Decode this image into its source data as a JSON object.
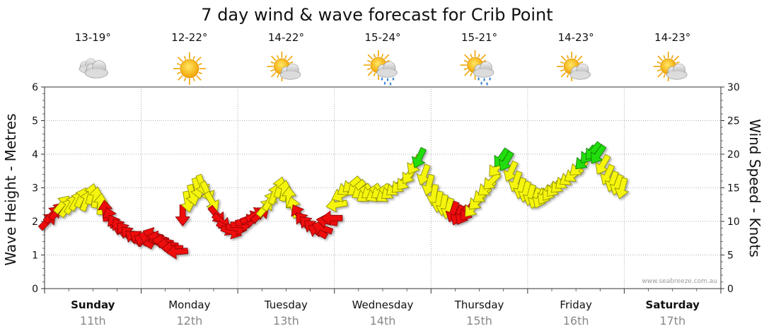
{
  "chart_data": {
    "type": "line",
    "title": "7 day wind & wave forecast for Crib Point",
    "ylabel": "Wave Height - Metres",
    "y2label": "Wind Speed - Knots",
    "ylim": [
      0,
      6
    ],
    "y2lim": [
      0,
      30
    ],
    "yticks": [
      "0",
      "1",
      "2",
      "3",
      "4",
      "5",
      "6"
    ],
    "y2ticks": [
      "0",
      "5",
      "10",
      "15",
      "20",
      "25",
      "30"
    ],
    "grid": true,
    "credit": "www.seabreeze.com.au",
    "days": [
      {
        "name": "Sunday",
        "date": "11th",
        "bold": true,
        "temp": "13-19°",
        "icon": "cloudy-icon"
      },
      {
        "name": "Monday",
        "date": "12th",
        "bold": false,
        "temp": "12-22°",
        "icon": "sunny-icon"
      },
      {
        "name": "Tuesday",
        "date": "13th",
        "bold": false,
        "temp": "14-22°",
        "icon": "partly-cloudy-icon"
      },
      {
        "name": "Wednesday",
        "date": "14th",
        "bold": false,
        "temp": "15-24°",
        "icon": "sun-shower-icon"
      },
      {
        "name": "Thursday",
        "date": "15th",
        "bold": false,
        "temp": "15-21°",
        "icon": "sun-shower-icon"
      },
      {
        "name": "Friday",
        "date": "16th",
        "bold": false,
        "temp": "14-23°",
        "icon": "partly-cloudy-icon"
      },
      {
        "name": "Saturday",
        "date": "17th",
        "bold": true,
        "temp": "14-23°",
        "icon": "partly-cloudy-icon"
      }
    ],
    "wind_x_unit": "day",
    "wind_series": [
      [
        0.0,
        10.0,
        225
      ],
      [
        0.05,
        11.0,
        225
      ],
      [
        0.1,
        11.5,
        220
      ],
      [
        0.15,
        12.5,
        220
      ],
      [
        0.2,
        12.0,
        215
      ],
      [
        0.25,
        12.5,
        210
      ],
      [
        0.3,
        13.0,
        210
      ],
      [
        0.35,
        13.5,
        205
      ],
      [
        0.4,
        13.0,
        200
      ],
      [
        0.45,
        14.0,
        195
      ],
      [
        0.5,
        13.5,
        190
      ],
      [
        0.55,
        12.5,
        185
      ],
      [
        0.6,
        11.5,
        175
      ],
      [
        0.65,
        10.5,
        160
      ],
      [
        0.7,
        9.5,
        150
      ],
      [
        0.75,
        9.0,
        145
      ],
      [
        0.8,
        8.5,
        140
      ],
      [
        0.85,
        8.0,
        135
      ],
      [
        0.9,
        7.5,
        130
      ],
      [
        0.95,
        7.5,
        125
      ],
      [
        1.0,
        7.0,
        120
      ],
      [
        1.05,
        7.5,
        115
      ],
      [
        1.1,
        8.0,
        110
      ],
      [
        1.15,
        7.5,
        105
      ],
      [
        1.2,
        7.0,
        100
      ],
      [
        1.25,
        6.5,
        95
      ],
      [
        1.3,
        6.0,
        90
      ],
      [
        1.35,
        5.5,
        85
      ],
      [
        1.4,
        11.0,
        0
      ],
      [
        1.45,
        13.0,
        350
      ],
      [
        1.5,
        14.0,
        345
      ],
      [
        1.55,
        15.0,
        345
      ],
      [
        1.6,
        15.5,
        340
      ],
      [
        1.65,
        14.5,
        335
      ],
      [
        1.7,
        13.0,
        330
      ],
      [
        1.75,
        11.0,
        320
      ],
      [
        1.8,
        10.0,
        310
      ],
      [
        1.85,
        9.0,
        300
      ],
      [
        1.9,
        8.5,
        290
      ],
      [
        1.95,
        9.0,
        280
      ],
      [
        2.0,
        9.5,
        270
      ],
      [
        2.05,
        10.0,
        260
      ],
      [
        2.1,
        10.5,
        250
      ],
      [
        2.15,
        11.0,
        240
      ],
      [
        2.2,
        11.0,
        230
      ],
      [
        2.25,
        12.0,
        220
      ],
      [
        2.3,
        13.0,
        210
      ],
      [
        2.35,
        14.0,
        200
      ],
      [
        2.4,
        15.0,
        195
      ],
      [
        2.45,
        14.5,
        190
      ],
      [
        2.5,
        13.5,
        180
      ],
      [
        2.55,
        12.0,
        165
      ],
      [
        2.6,
        11.0,
        150
      ],
      [
        2.65,
        10.0,
        140
      ],
      [
        2.7,
        9.5,
        135
      ],
      [
        2.75,
        9.0,
        130
      ],
      [
        2.8,
        8.5,
        120
      ],
      [
        2.85,
        9.0,
        110
      ],
      [
        2.9,
        10.0,
        100
      ],
      [
        2.95,
        10.5,
        90
      ],
      [
        3.0,
        12.5,
        80
      ],
      [
        3.05,
        14.0,
        65
      ],
      [
        3.1,
        15.0,
        55
      ],
      [
        3.15,
        15.5,
        50
      ],
      [
        3.2,
        15.0,
        50
      ],
      [
        3.25,
        14.5,
        55
      ],
      [
        3.3,
        14.0,
        55
      ],
      [
        3.35,
        14.5,
        55
      ],
      [
        3.4,
        14.0,
        60
      ],
      [
        3.45,
        14.5,
        55
      ],
      [
        3.5,
        14.0,
        55
      ],
      [
        3.55,
        14.5,
        50
      ],
      [
        3.6,
        15.0,
        50
      ],
      [
        3.65,
        15.5,
        45
      ],
      [
        3.7,
        16.0,
        40
      ],
      [
        3.75,
        17.0,
        35
      ],
      [
        3.8,
        18.5,
        30
      ],
      [
        3.85,
        19.5,
        25
      ],
      [
        3.9,
        17.0,
        20
      ],
      [
        3.95,
        15.5,
        15
      ],
      [
        4.0,
        14.0,
        10
      ],
      [
        4.05,
        13.0,
        10
      ],
      [
        4.1,
        12.5,
        10
      ],
      [
        4.15,
        12.0,
        15
      ],
      [
        4.2,
        11.5,
        20
      ],
      [
        4.25,
        11.0,
        25
      ],
      [
        4.3,
        11.0,
        30
      ],
      [
        4.35,
        11.5,
        35
      ],
      [
        4.4,
        12.0,
        40
      ],
      [
        4.45,
        13.0,
        45
      ],
      [
        4.5,
        14.0,
        50
      ],
      [
        4.55,
        15.0,
        50
      ],
      [
        4.6,
        16.0,
        45
      ],
      [
        4.65,
        18.0,
        40
      ],
      [
        4.7,
        19.5,
        35
      ],
      [
        4.75,
        19.0,
        30
      ],
      [
        4.8,
        17.5,
        25
      ],
      [
        4.85,
        16.0,
        20
      ],
      [
        4.9,
        15.0,
        15
      ],
      [
        4.95,
        14.5,
        15
      ],
      [
        5.0,
        14.0,
        15
      ],
      [
        5.05,
        13.5,
        20
      ],
      [
        5.1,
        13.5,
        25
      ],
      [
        5.15,
        14.0,
        30
      ],
      [
        5.2,
        14.5,
        35
      ],
      [
        5.25,
        15.0,
        40
      ],
      [
        5.3,
        15.5,
        45
      ],
      [
        5.35,
        16.0,
        50
      ],
      [
        5.4,
        16.5,
        55
      ],
      [
        5.45,
        17.0,
        55
      ],
      [
        5.5,
        18.0,
        50
      ],
      [
        5.55,
        19.0,
        45
      ],
      [
        5.6,
        20.0,
        40
      ],
      [
        5.65,
        20.5,
        40
      ],
      [
        5.7,
        20.0,
        35
      ],
      [
        5.75,
        18.5,
        30
      ],
      [
        5.8,
        17.0,
        25
      ],
      [
        5.85,
        16.0,
        20
      ],
      [
        5.9,
        15.5,
        20
      ],
      [
        5.95,
        15.0,
        15
      ]
    ]
  }
}
